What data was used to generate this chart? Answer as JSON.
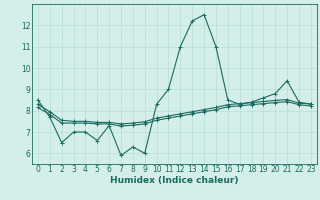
{
  "xlabel": "Humidex (Indice chaleur)",
  "ylabel": "",
  "bg_color": "#d4eeea",
  "grid_color": "#b8ddd8",
  "line_color": "#1a6b5e",
  "xlim": [
    -0.5,
    23.5
  ],
  "ylim": [
    5.5,
    13.0
  ],
  "xticks": [
    0,
    1,
    2,
    3,
    4,
    5,
    6,
    7,
    8,
    9,
    10,
    11,
    12,
    13,
    14,
    15,
    16,
    17,
    18,
    19,
    20,
    21,
    22,
    23
  ],
  "yticks": [
    6,
    7,
    8,
    9,
    10,
    11,
    12
  ],
  "series1_x": [
    0,
    1,
    2,
    3,
    4,
    5,
    6,
    7,
    8,
    9,
    10,
    11,
    12,
    13,
    14,
    15,
    16,
    17,
    18,
    19,
    20,
    21,
    22,
    23
  ],
  "series1_y": [
    8.5,
    7.7,
    6.5,
    7.0,
    7.0,
    6.6,
    7.3,
    5.9,
    6.3,
    6.0,
    8.3,
    9.0,
    11.0,
    12.2,
    12.5,
    11.0,
    8.5,
    8.3,
    8.4,
    8.6,
    8.8,
    9.4,
    8.4,
    8.3
  ],
  "series2_x": [
    0,
    1,
    2,
    3,
    4,
    5,
    6,
    7,
    8,
    9,
    10,
    11,
    12,
    13,
    14,
    15,
    16,
    17,
    18,
    19,
    20,
    21,
    22,
    23
  ],
  "series2_y": [
    8.3,
    7.95,
    7.55,
    7.5,
    7.5,
    7.45,
    7.45,
    7.38,
    7.42,
    7.48,
    7.65,
    7.75,
    7.85,
    7.95,
    8.05,
    8.15,
    8.28,
    8.33,
    8.38,
    8.43,
    8.48,
    8.52,
    8.35,
    8.32
  ],
  "series3_x": [
    0,
    1,
    2,
    3,
    4,
    5,
    6,
    7,
    8,
    9,
    10,
    11,
    12,
    13,
    14,
    15,
    16,
    17,
    18,
    19,
    20,
    21,
    22,
    23
  ],
  "series3_y": [
    8.15,
    7.82,
    7.42,
    7.42,
    7.42,
    7.38,
    7.38,
    7.28,
    7.32,
    7.38,
    7.55,
    7.65,
    7.75,
    7.85,
    7.95,
    8.05,
    8.18,
    8.23,
    8.28,
    8.33,
    8.38,
    8.42,
    8.28,
    8.22
  ],
  "tick_fontsize": 5.5,
  "label_fontsize": 6.5
}
